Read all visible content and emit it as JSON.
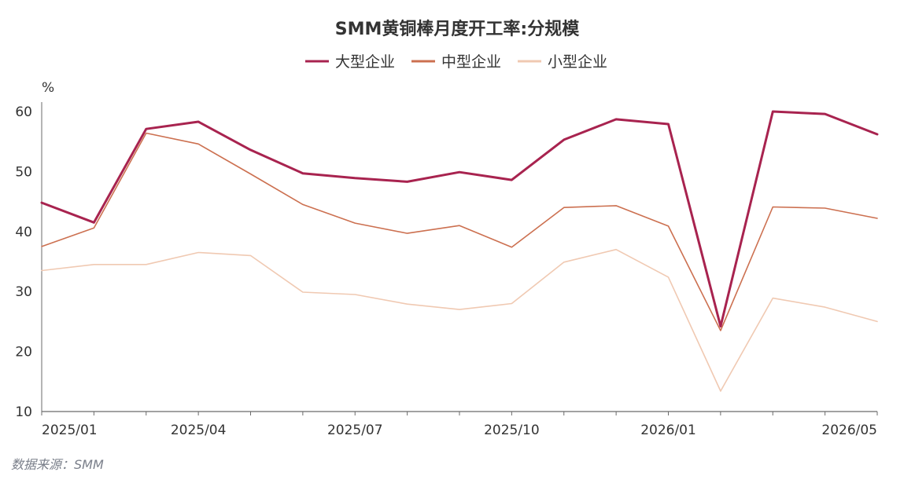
{
  "chart_data": {
    "type": "line",
    "title": "SMM黄铜棒月度开工率:分规模",
    "ylabel": "%",
    "source": "数据来源：SMM",
    "ylim": [
      10,
      60
    ],
    "yticks": [
      10,
      20,
      30,
      40,
      50,
      60
    ],
    "grid": false,
    "legend_position": "top-center",
    "x": [
      "2025/01",
      "2025/02",
      "2025/03",
      "2025/04",
      "2025/05",
      "2025/06",
      "2025/07",
      "2025/08",
      "2025/09",
      "2025/10",
      "2025/11",
      "2025/12",
      "2026/01",
      "2026/02",
      "2026/03",
      "2026/04",
      "2026/05"
    ],
    "x_tick_labels": [
      {
        "label": "2025/01",
        "index": 0
      },
      {
        "label": "2025/04",
        "index": 3
      },
      {
        "label": "2025/07",
        "index": 6
      },
      {
        "label": "2025/10",
        "index": 9
      },
      {
        "label": "2026/01",
        "index": 12
      },
      {
        "label": "2026/05",
        "index": 16
      }
    ],
    "series": [
      {
        "name": "大型企业",
        "color": "#a8234f",
        "width": 3,
        "values": [
          44.8,
          41.5,
          57.1,
          58.3,
          53.6,
          49.7,
          48.9,
          48.3,
          49.9,
          48.6,
          55.3,
          58.7,
          57.9,
          24.2,
          60.0,
          59.6,
          56.2
        ]
      },
      {
        "name": "中型企业",
        "color": "#cc7050",
        "width": 1.6,
        "values": [
          37.5,
          40.6,
          56.4,
          54.6,
          49.6,
          44.5,
          41.4,
          39.7,
          41.0,
          37.4,
          44.0,
          44.3,
          40.9,
          23.5,
          44.1,
          43.9,
          42.2
        ]
      },
      {
        "name": "小型企业",
        "color": "#f0c9b2",
        "width": 1.6,
        "values": [
          33.5,
          34.5,
          34.5,
          36.5,
          36.0,
          29.9,
          29.5,
          27.9,
          27.0,
          28.0,
          34.9,
          37.0,
          32.4,
          13.4,
          28.9,
          27.4,
          25.0
        ]
      }
    ]
  }
}
